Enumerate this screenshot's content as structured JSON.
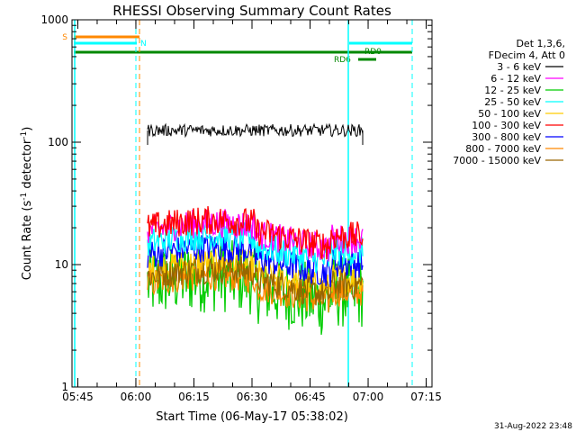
{
  "chart_data": {
    "type": "line",
    "title": "RHESSI Observing Summary Count Rates",
    "xlabel": "Start Time (06-May-17 05:38:02)",
    "ylabel_main": "Count Rate (s",
    "ylabel_sup1": "-1",
    "ylabel_mid": " detector",
    "ylabel_sup2": "-1",
    "ylabel_end": ")",
    "yscale": "log",
    "ylim": [
      1,
      1000
    ],
    "xlim_minutes": [
      5.5,
      98.5
    ],
    "x_ticks": [
      {
        "label": "05:45",
        "minutes": 45
      },
      {
        "label": "06:00",
        "minutes": 60
      },
      {
        "label": "06:15",
        "minutes": 75
      },
      {
        "label": "06:30",
        "minutes": 90
      },
      {
        "label": "06:45",
        "minutes": 105
      },
      {
        "label": "07:00",
        "minutes": 120
      },
      {
        "label": "07:15",
        "minutes": 135
      }
    ],
    "y_ticks": [
      {
        "label": "1",
        "value": 1
      },
      {
        "label": "10",
        "value": 10
      },
      {
        "label": "100",
        "value": 100
      },
      {
        "label": "1000",
        "value": 1000
      }
    ],
    "legend": {
      "header": [
        "Det 1,3,6,",
        "FDecim 4, Att 0"
      ],
      "position": "right"
    },
    "series": [
      {
        "name": "3 - 6 keV",
        "color": "#000000",
        "level": 125
      },
      {
        "name": "6 - 12 keV",
        "color": "#ff00ff",
        "level": 19
      },
      {
        "name": "12 - 25 keV",
        "color": "#00cc00",
        "level": 7
      },
      {
        "name": "25 - 50 keV",
        "color": "#00ffff",
        "level": 15
      },
      {
        "name": "50 - 100 keV",
        "color": "#ffcc00",
        "level": 9
      },
      {
        "name": "100 - 300 keV",
        "color": "#ff0000",
        "level": 20
      },
      {
        "name": "300 - 800 keV",
        "color": "#0000ff",
        "level": 12
      },
      {
        "name": "800 - 7000 keV",
        "color": "#ff8800",
        "level": 7
      },
      {
        "name": "7000 - 15000 keV",
        "color": "#996600",
        "level": 8
      }
    ],
    "flags": [
      {
        "label": "S",
        "color": "#ff8800"
      },
      {
        "label": "N",
        "color": "#00ffff"
      },
      {
        "label": "RD0",
        "color": "#008800"
      },
      {
        "label": "RD6",
        "color": "#008800"
      }
    ],
    "timestamp": "31-Aug-2022 23:48"
  }
}
